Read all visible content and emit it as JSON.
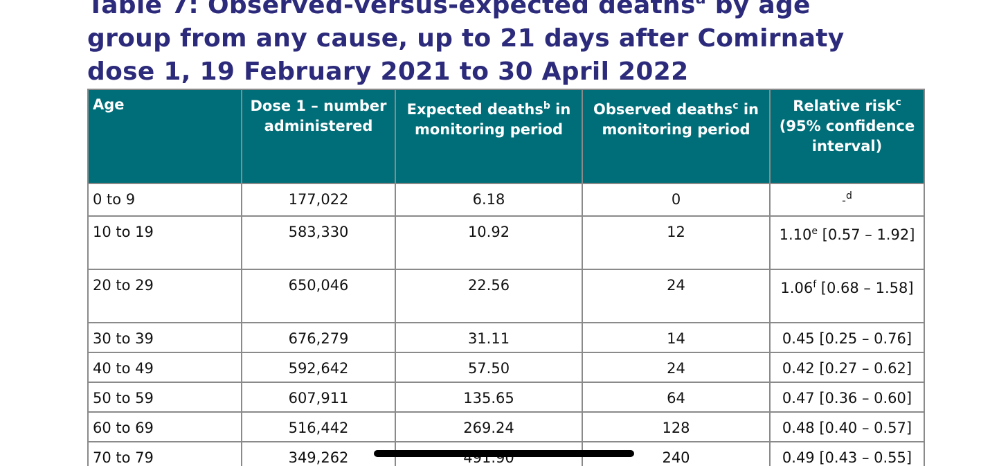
{
  "title": {
    "line1_a": "Table 7: Observed-versus-expected deaths",
    "sup_a": "a",
    "line1_b": " by age",
    "line2": "group from any cause, up to 21 days after Comirnaty",
    "line3": "dose 1, 19 February 2021 to 30 April 2022"
  },
  "table": {
    "headers": {
      "age": "Age",
      "dose": "Dose 1 – number administered",
      "expected": "Expected deaths",
      "expected_sup": "b",
      "expected_tail": " in monitoring period",
      "observed": "Observed deaths",
      "observed_sup": "c",
      "observed_tail": " in monitoring period",
      "rr": "Relative risk",
      "rr_sup": "c",
      "rr_tail": " (95% confidence interval)"
    },
    "rows": [
      {
        "age": "0 to 9",
        "dose": "177,022",
        "expected": "6.18",
        "observed": "0",
        "rr": "-",
        "rr_sup": "d",
        "rr_rest": ""
      },
      {
        "age": "10 to 19",
        "dose": "583,330",
        "expected": "10.92",
        "observed": "12",
        "rr": "1.10",
        "rr_sup": "e",
        "rr_rest": " [0.57 – 1.92]"
      },
      {
        "age": "20 to 29",
        "dose": "650,046",
        "expected": "22.56",
        "observed": "24",
        "rr": "1.06",
        "rr_sup": "f",
        "rr_rest": " [0.68 – 1.58]"
      },
      {
        "age": "30 to 39",
        "dose": "676,279",
        "expected": "31.11",
        "observed": "14",
        "rr": "0.45 [0.25 – 0.76]"
      },
      {
        "age": "40 to 49",
        "dose": "592,642",
        "expected": "57.50",
        "observed": "24",
        "rr": "0.42 [0.27 – 0.62]"
      },
      {
        "age": "50 to 59",
        "dose": "607,911",
        "expected": "135.65",
        "observed": "64",
        "rr": "0.47 [0.36 – 0.60]"
      },
      {
        "age": "60 to 69",
        "dose": "516,442",
        "expected": "269.24",
        "observed": "128",
        "rr": "0.48 [0.40 – 0.57]"
      },
      {
        "age": "70 to 79",
        "dose": "349,262",
        "expected": "491.90",
        "observed": "240",
        "rr": "0.49 [0.43 – 0.55]"
      }
    ]
  }
}
